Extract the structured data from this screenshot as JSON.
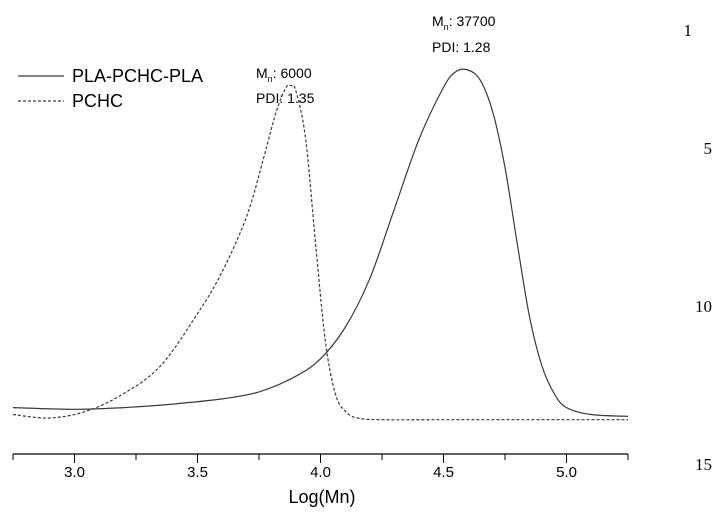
{
  "chart_data": {
    "type": "line",
    "title": "",
    "xlabel": "Log(Mn)",
    "ylabel": "",
    "xlim": [
      2.75,
      5.25
    ],
    "ylim": [
      -0.05,
      1.05
    ],
    "x_ticks": [
      "3.0",
      "3.5",
      "4.0",
      "4.5",
      "5.0"
    ],
    "grid": false,
    "legend_position": "top-left",
    "series": [
      {
        "name": "PLA-PCHC-PLA",
        "style": "solid",
        "color": "#3a3a3a",
        "x": [
          2.75,
          3.0,
          3.2,
          3.4,
          3.6,
          3.75,
          3.9,
          4.0,
          4.1,
          4.2,
          4.3,
          4.4,
          4.5,
          4.55,
          4.6,
          4.65,
          4.7,
          4.75,
          4.8,
          4.85,
          4.9,
          4.95,
          5.0,
          5.1,
          5.25
        ],
        "y": [
          0.03,
          0.025,
          0.03,
          0.04,
          0.055,
          0.075,
          0.12,
          0.17,
          0.26,
          0.4,
          0.6,
          0.8,
          0.95,
          0.995,
          1.0,
          0.97,
          0.88,
          0.72,
          0.5,
          0.29,
          0.15,
          0.07,
          0.03,
          0.01,
          0.005
        ]
      },
      {
        "name": "PCHC",
        "style": "dashed",
        "color": "#3a3a3a",
        "x": [
          2.75,
          2.9,
          3.05,
          3.2,
          3.35,
          3.5,
          3.6,
          3.7,
          3.77,
          3.82,
          3.86,
          3.88,
          3.9,
          3.94,
          3.98,
          4.02,
          4.06,
          4.1,
          4.15,
          4.25,
          4.5,
          5.25
        ],
        "y": [
          0.01,
          0.0,
          0.02,
          0.07,
          0.15,
          0.3,
          0.42,
          0.58,
          0.75,
          0.88,
          0.95,
          0.955,
          0.94,
          0.8,
          0.5,
          0.22,
          0.07,
          0.02,
          0.0,
          -0.005,
          -0.005,
          -0.005
        ]
      }
    ],
    "annotations": [
      {
        "id": "pchc",
        "mn_label": "M",
        "mn_sub": "n",
        "mn_value": ": 6000",
        "pdi": "PDI: 1.35"
      },
      {
        "id": "pla",
        "mn_label": "M",
        "mn_sub": "n",
        "mn_value": ": 37700",
        "pdi": "PDI: 1.28"
      }
    ]
  },
  "line_numbers": [
    "1",
    "5",
    "10",
    "15"
  ]
}
